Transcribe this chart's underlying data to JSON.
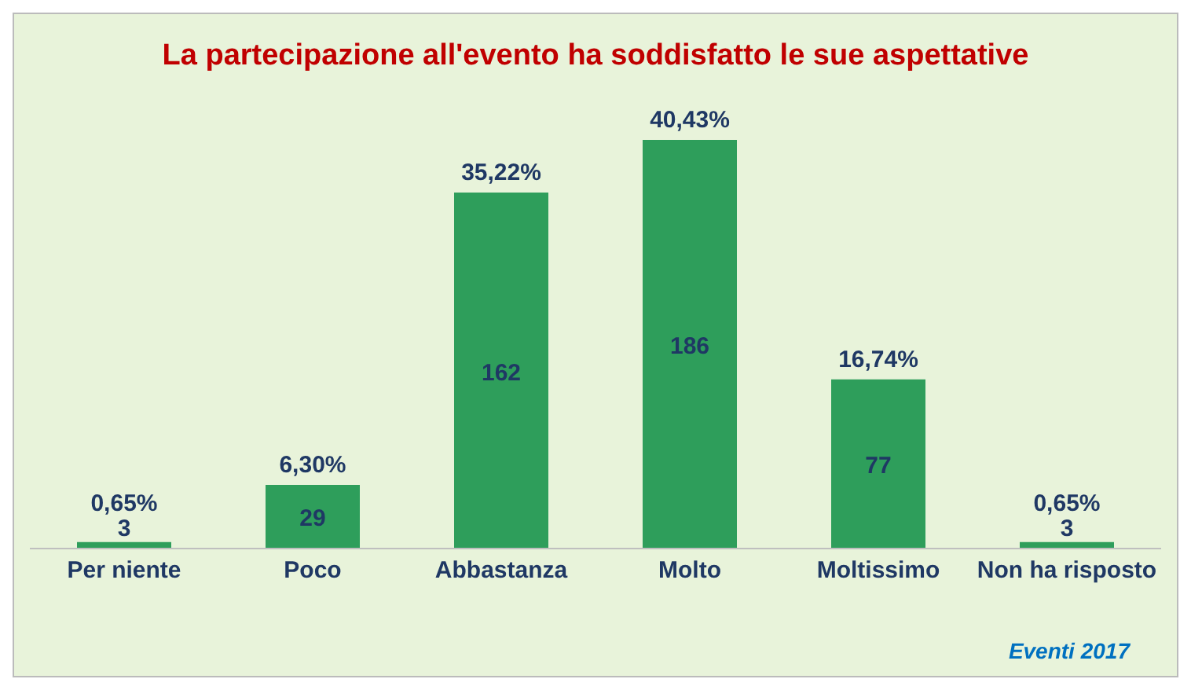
{
  "chart_data": {
    "type": "bar",
    "title": "La partecipazione all'evento ha soddisfatto le sue aspettative",
    "categories": [
      "Per niente",
      "Poco",
      "Abbastanza",
      "Molto",
      "Moltissimo",
      "Non ha risposto"
    ],
    "values": [
      0.65,
      6.3,
      35.22,
      40.43,
      16.74,
      0.65
    ],
    "value_labels": [
      "0,65%",
      "6,30%",
      "35,22%",
      "40,43%",
      "16,74%",
      "0,65%"
    ],
    "color": "#2e9e5b",
    "annotations": [
      "3",
      "29",
      "162",
      "186",
      "77",
      "3",
      "Eventi 2017"
    ]
  }
}
